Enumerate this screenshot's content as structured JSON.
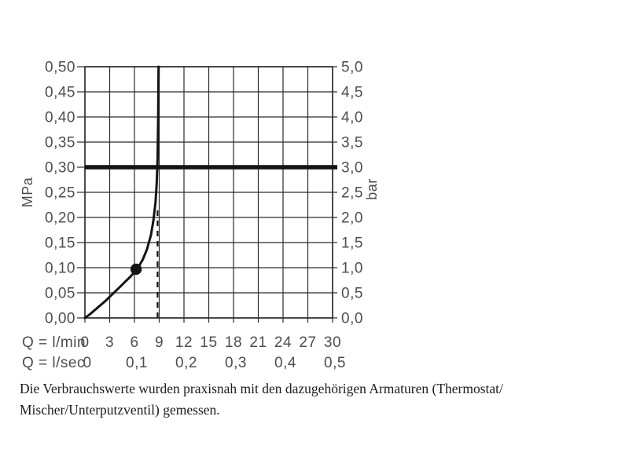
{
  "caption": {
    "line1": "Die Verbrauchswerte wurden praxisnah mit den dazugehörigen Armaturen (Thermostat/",
    "line2": "Mischer/Unterputzventil) gemessen."
  },
  "chart_data": {
    "type": "line",
    "grid": true,
    "x_axis": {
      "primary_label": "Q = l/min",
      "secondary_label": "Q = l/sec",
      "primary_ticks": [
        "0",
        "3",
        "6",
        "9",
        "12",
        "15",
        "18",
        "21",
        "24",
        "27",
        "30"
      ],
      "primary_tick_values": [
        0,
        3,
        6,
        9,
        12,
        15,
        18,
        21,
        24,
        27,
        30
      ],
      "secondary_ticks": [
        "0",
        "0,1",
        "0,2",
        "0,3",
        "0,4",
        "0,5"
      ],
      "secondary_tick_positions_lmin": [
        0,
        6,
        12,
        18,
        24,
        30
      ],
      "range": [
        0,
        30
      ],
      "grid_step": 3
    },
    "y_axis_left": {
      "unit": "MPa",
      "ticks": [
        "0,00",
        "0,05",
        "0,10",
        "0,15",
        "0,20",
        "0,25",
        "0,30",
        "0,35",
        "0,40",
        "0,45",
        "0,50"
      ],
      "range": [
        0,
        0.5
      ],
      "grid_step": 0.05
    },
    "y_axis_right": {
      "unit": "bar",
      "ticks": [
        "0,0",
        "0,5",
        "1,0",
        "1,5",
        "2,0",
        "2,5",
        "3,0",
        "3,5",
        "4,0",
        "4,5",
        "5,0"
      ],
      "range": [
        0,
        5
      ]
    },
    "series": [
      {
        "name": "flow-pressure-curve",
        "points_lmin_mpa": [
          [
            0,
            0
          ],
          [
            0.5,
            0.006
          ],
          [
            1,
            0.013
          ],
          [
            1.5,
            0.02
          ],
          [
            2,
            0.027
          ],
          [
            2.5,
            0.034
          ],
          [
            3,
            0.042
          ],
          [
            3.5,
            0.05
          ],
          [
            4,
            0.058
          ],
          [
            4.5,
            0.066
          ],
          [
            5,
            0.074
          ],
          [
            5.5,
            0.082
          ],
          [
            6,
            0.091
          ],
          [
            6.5,
            0.102
          ],
          [
            7,
            0.116
          ],
          [
            7.5,
            0.136
          ],
          [
            8,
            0.165
          ],
          [
            8.3,
            0.195
          ],
          [
            8.55,
            0.23
          ],
          [
            8.7,
            0.268
          ],
          [
            8.8,
            0.315
          ],
          [
            8.87,
            0.39
          ],
          [
            8.9,
            0.45
          ],
          [
            8.92,
            0.5
          ]
        ]
      }
    ],
    "annotations": {
      "thick_reference_line_mpa": 0.3,
      "thick_reference_line_bar": 3.0,
      "dashed_vertical_line": {
        "x_lmin": 8.8,
        "from_mpa": 0,
        "to_mpa": 0.22
      },
      "marker_dot": {
        "x_lmin": 6.2,
        "y_mpa": 0.097
      }
    },
    "colors": {
      "ink": "#141414",
      "grid": "#2b2b2b",
      "tick_text": "#4d4d4d"
    }
  }
}
